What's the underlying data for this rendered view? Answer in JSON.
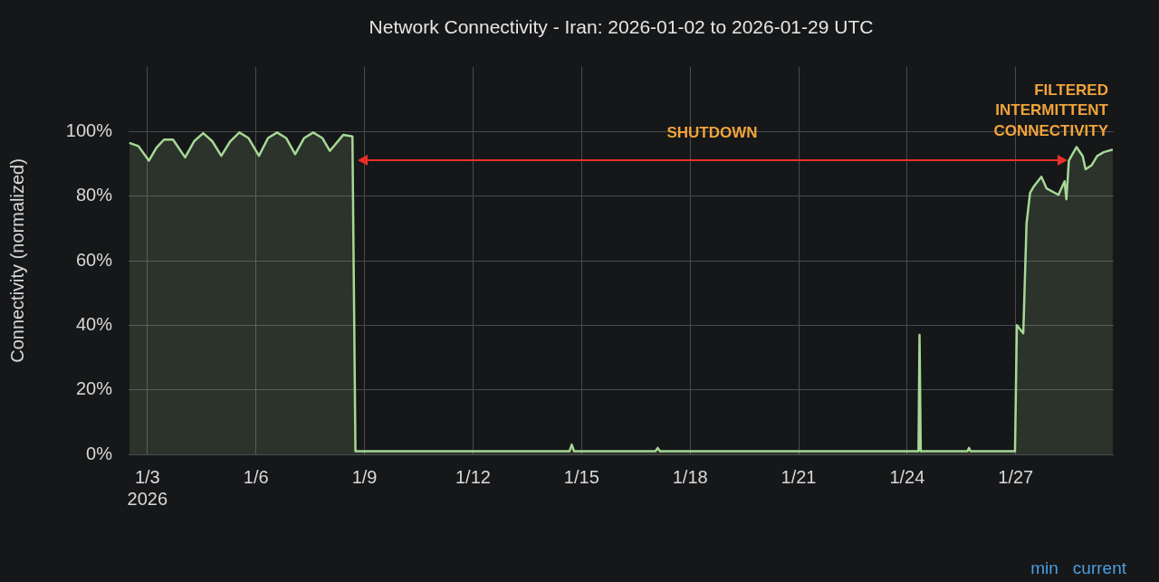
{
  "chart_data": {
    "type": "area",
    "title": "Network Connectivity - Iran: 2026-01-02 to 2026-01-29 UTC",
    "ylabel": "Connectivity (normalized)",
    "x": [
      "2026-01-02T12:00",
      "2026-01-02T18:00",
      "2026-01-03T01:00",
      "2026-01-03T06:00",
      "2026-01-03T11:00",
      "2026-01-03T17:00",
      "2026-01-04T01:00",
      "2026-01-04T07:00",
      "2026-01-04T13:00",
      "2026-01-04T19:00",
      "2026-01-05T01:00",
      "2026-01-05T07:00",
      "2026-01-05T13:00",
      "2026-01-05T19:00",
      "2026-01-06T02:00",
      "2026-01-06T08:00",
      "2026-01-06T14:00",
      "2026-01-06T20:00",
      "2026-01-07T02:00",
      "2026-01-07T08:00",
      "2026-01-07T14:00",
      "2026-01-07T20:00",
      "2026-01-08T01:00",
      "2026-01-08T10:00",
      "2026-01-08T16:00",
      "2026-01-08T18:00",
      "2026-01-10T12:00",
      "2026-01-14T16:00",
      "2026-01-14T17:30",
      "2026-01-14T19:00",
      "2026-01-17T01:00",
      "2026-01-17T02:30",
      "2026-01-17T04:00",
      "2026-01-24T07:30",
      "2026-01-24T08:10",
      "2026-01-24T09:00",
      "2026-01-25T16:00",
      "2026-01-25T17:00",
      "2026-01-25T18:00",
      "2026-01-26T23:30",
      "2026-01-27T00:45",
      "2026-01-27T05:00",
      "2026-01-27T07:10",
      "2026-01-27T09:30",
      "2026-01-27T12:00",
      "2026-01-27T17:00",
      "2026-01-27T20:25",
      "2026-01-28T04:20",
      "2026-01-28T08:25",
      "2026-01-28T09:35",
      "2026-01-28T11:15",
      "2026-01-28T16:20",
      "2026-01-28T20:25",
      "2026-01-28T22:20",
      "2026-01-29T02:25",
      "2026-01-29T06:00",
      "2026-01-29T10:20",
      "2026-01-29T16:20"
    ],
    "series": [
      {
        "color": "#a6d895",
        "values": [
          96.5,
          95.5,
          91,
          95,
          97.5,
          97.5,
          92,
          97,
          99.5,
          97,
          92.5,
          97,
          99.7,
          98,
          92.5,
          98,
          99.7,
          98,
          93,
          98,
          99.7,
          98,
          94,
          99,
          98.5,
          1,
          1,
          1,
          3,
          1,
          1,
          2,
          1,
          1,
          37,
          1,
          1,
          2,
          1,
          1,
          40,
          37.5,
          71.5,
          81,
          83,
          86,
          82.4,
          80.4,
          84.6,
          79,
          91,
          95.2,
          92.4,
          88.3,
          89.6,
          92.4,
          93.6,
          94.4
        ]
      }
    ],
    "xlim": [
      "2026-01-02T11:30",
      "2026-01-29T17:00"
    ],
    "xticks": [
      {
        "value": "2026-01-03",
        "label": "1/3\n2026"
      },
      {
        "value": "2026-01-06",
        "label": "1/6"
      },
      {
        "value": "2026-01-09",
        "label": "1/9"
      },
      {
        "value": "2026-01-12",
        "label": "1/12"
      },
      {
        "value": "2026-01-15",
        "label": "1/15"
      },
      {
        "value": "2026-01-18",
        "label": "1/18"
      },
      {
        "value": "2026-01-21",
        "label": "1/21"
      },
      {
        "value": "2026-01-24",
        "label": "1/24"
      },
      {
        "value": "2026-01-27",
        "label": "1/27"
      }
    ],
    "ylim": [
      0,
      120
    ],
    "yticks": [
      {
        "value": 0,
        "label": "0%"
      },
      {
        "value": 20,
        "label": "20%"
      },
      {
        "value": 40,
        "label": "40%"
      },
      {
        "value": 60,
        "label": "60%"
      },
      {
        "value": 80,
        "label": "80%"
      },
      {
        "value": 100,
        "label": "100%"
      }
    ],
    "grid": true,
    "annotations": [
      "SHUTDOWN",
      "FILTERED\nINTERMITTENT\nCONNECTIVITY",
      "min",
      "current"
    ]
  }
}
